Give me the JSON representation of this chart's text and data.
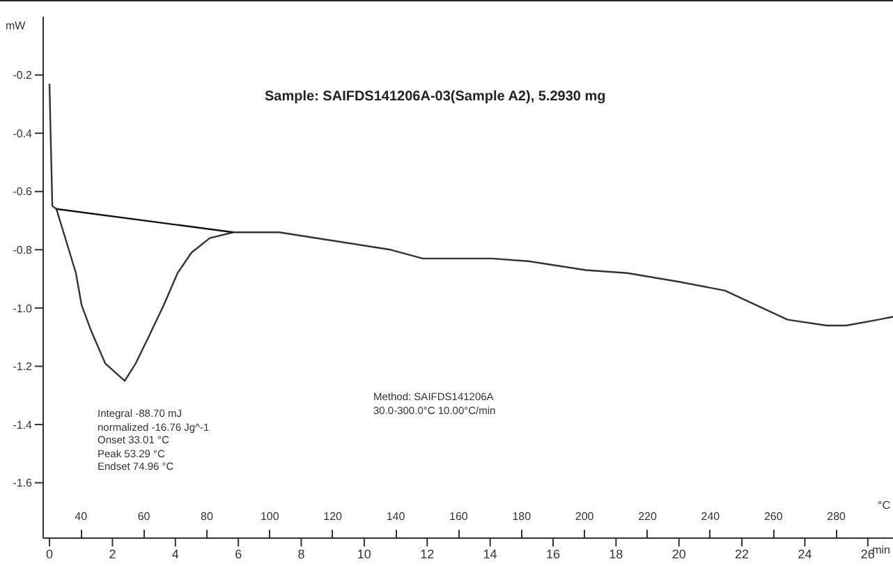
{
  "chart_data": {
    "type": "line",
    "title": "Sample: SAIFDS141206A-03(Sample A2), 5.2930 mg",
    "ylabel": "mW",
    "xlabel": "min",
    "x2label": "°C",
    "xlim": [
      -0.2,
      26.8
    ],
    "xticks": [
      0,
      2,
      4,
      6,
      8,
      10,
      12,
      14,
      16,
      18,
      20,
      22,
      24,
      26
    ],
    "x2lim": [
      28,
      298
    ],
    "x2ticks": [
      40,
      60,
      80,
      100,
      120,
      140,
      160,
      180,
      200,
      220,
      240,
      260,
      280
    ],
    "ylim": [
      -1.79,
      0
    ],
    "yticks": [
      -0.2,
      -0.4,
      -0.6,
      -0.8,
      {
        "value": -1,
        "label": "-1.0"
      },
      -1.2,
      -1.4,
      -1.6
    ],
    "grid": false,
    "legend": false,
    "series": [
      {
        "color": "#333333",
        "x": [
          0,
          0.04,
          0.09,
          0.22,
          0.53,
          0.84,
          1.02,
          1.33,
          1.77,
          2.39,
          2.74,
          3.19,
          3.63,
          4.07,
          4.51,
          5.09,
          5.84,
          7.3,
          9.07,
          10.84,
          11.86,
          14.07,
          15.27,
          17.04,
          18.36,
          20.0,
          21.46,
          23.45,
          24.69,
          25.31,
          26.33,
          26.8
        ],
        "values": [
          -0.23,
          -0.42,
          -0.65,
          -0.66,
          -0.77,
          -0.88,
          -0.99,
          -1.08,
          -1.19,
          -1.25,
          -1.19,
          -1.09,
          -0.99,
          -0.88,
          -0.81,
          -0.76,
          -0.74,
          -0.74,
          -0.77,
          -0.8,
          -0.83,
          -0.83,
          -0.84,
          -0.87,
          -0.88,
          -0.91,
          -0.94,
          -1.04,
          -1.06,
          -1.06,
          -1.04,
          -1.03
        ]
      },
      {
        "color": "#111111",
        "x": [
          0.22,
          5.84
        ],
        "values": [
          -0.66,
          -0.74
        ]
      }
    ],
    "annotations": [
      "Integral -88.70 mJ",
      "normalized -16.76 Jg^-1",
      "Onset 33.01 °C",
      "Peak 53.29 °C",
      "Endset 74.96 °C",
      "Method: SAIFDS141206A",
      "30.0-300.0°C 10.00°C/min"
    ]
  }
}
